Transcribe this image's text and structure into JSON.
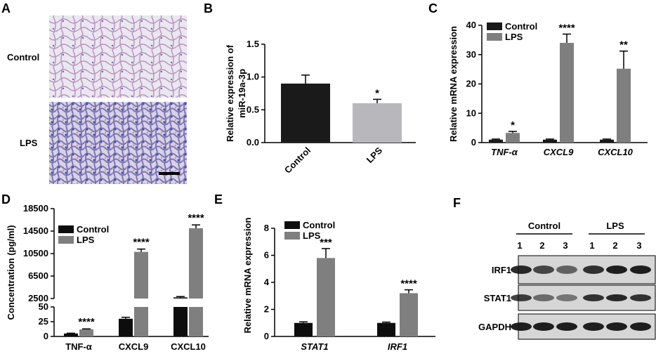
{
  "colors": {
    "control": "#1a1a1a",
    "control_b": "#0d0d0d",
    "lps_dark": "#7f7f7f",
    "lps_light": "#b8b8bc",
    "tissue_pink": "#d9a9c8",
    "tissue_blue": "#5a6fb0"
  },
  "panels": {
    "A": {
      "letter": "A",
      "rows": [
        "Control",
        "LPS"
      ]
    },
    "B": {
      "letter": "B"
    },
    "C": {
      "letter": "C"
    },
    "D": {
      "letter": "D"
    },
    "E": {
      "letter": "E"
    },
    "F": {
      "letter": "F",
      "groups": [
        "Control",
        "LPS"
      ],
      "lanes": [
        "1",
        "2",
        "3",
        "1",
        "2",
        "3"
      ],
      "proteins": [
        "IRF1",
        "STAT1",
        "GAPDH"
      ]
    }
  },
  "chart_data": [
    {
      "panel": "B",
      "type": "bar",
      "categories": [
        "Control",
        "LPS"
      ],
      "values": [
        0.9,
        0.6
      ],
      "errors": [
        0.13,
        0.06
      ],
      "significance": [
        "",
        "*"
      ],
      "ylabel_lines": [
        "Relative expression of",
        "miR-19a-3p"
      ],
      "ylim": [
        0,
        1.5
      ],
      "yticks": [
        "0.0",
        "0.5",
        "1.0",
        "1.5"
      ],
      "ytick_values": [
        0,
        0.5,
        1.0,
        1.5
      ]
    },
    {
      "panel": "C",
      "type": "bar",
      "categories": [
        "TNF-α",
        "CXCL9",
        "CXCL10"
      ],
      "series": [
        {
          "name": "Control",
          "values": [
            1.0,
            1.0,
            1.0
          ],
          "errors": [
            0.2,
            0.2,
            0.2
          ]
        },
        {
          "name": "LPS",
          "values": [
            3.3,
            34.0,
            25.2
          ],
          "errors": [
            0.5,
            3.0,
            6.0
          ]
        }
      ],
      "significance": [
        "*",
        "****",
        "**"
      ],
      "ylabel": "Relative mRNA expression",
      "ylim": [
        0,
        40
      ],
      "yticks": [
        "0",
        "10",
        "20",
        "30",
        "40"
      ],
      "ytick_values": [
        0,
        10,
        20,
        30,
        40
      ],
      "legend": [
        "Control",
        "LPS"
      ]
    },
    {
      "panel": "D",
      "type": "bar",
      "categories": [
        "TNF-α",
        "CXCL9",
        "CXCL10"
      ],
      "series": [
        {
          "name": "Control",
          "values": [
            5,
            30,
            2700
          ],
          "errors": [
            0.5,
            2.5,
            150
          ]
        },
        {
          "name": "LPS",
          "values": [
            12,
            10800,
            15000
          ],
          "errors": [
            0.8,
            500,
            600
          ]
        }
      ],
      "significance": [
        "****",
        "****",
        "****"
      ],
      "ylabel": "Concentration  (pg/ml)",
      "axis_break": [
        50,
        2500
      ],
      "yticks_lower": [
        "0",
        "25",
        "50"
      ],
      "ytick_values_lower": [
        0,
        25,
        50
      ],
      "yticks_upper": [
        "2500",
        "6500",
        "10500",
        "14500",
        "18500"
      ],
      "ytick_values_upper": [
        2500,
        6500,
        10500,
        14500,
        18500
      ],
      "legend": [
        "Control",
        "LPS"
      ]
    },
    {
      "panel": "E",
      "type": "bar",
      "categories": [
        "STAT1",
        "IRF1"
      ],
      "series": [
        {
          "name": "Control",
          "values": [
            1.0,
            1.0
          ],
          "errors": [
            0.08,
            0.06
          ]
        },
        {
          "name": "LPS",
          "values": [
            5.8,
            3.2
          ],
          "errors": [
            0.7,
            0.25
          ]
        }
      ],
      "significance": [
        "***",
        "****"
      ],
      "ylabel": "Relative mRNA expression",
      "ylim": [
        0,
        8
      ],
      "yticks": [
        "0",
        "2",
        "4",
        "6",
        "8"
      ],
      "ytick_values": [
        0,
        2,
        4,
        6,
        8
      ],
      "legend": [
        "Control",
        "LPS"
      ]
    }
  ]
}
